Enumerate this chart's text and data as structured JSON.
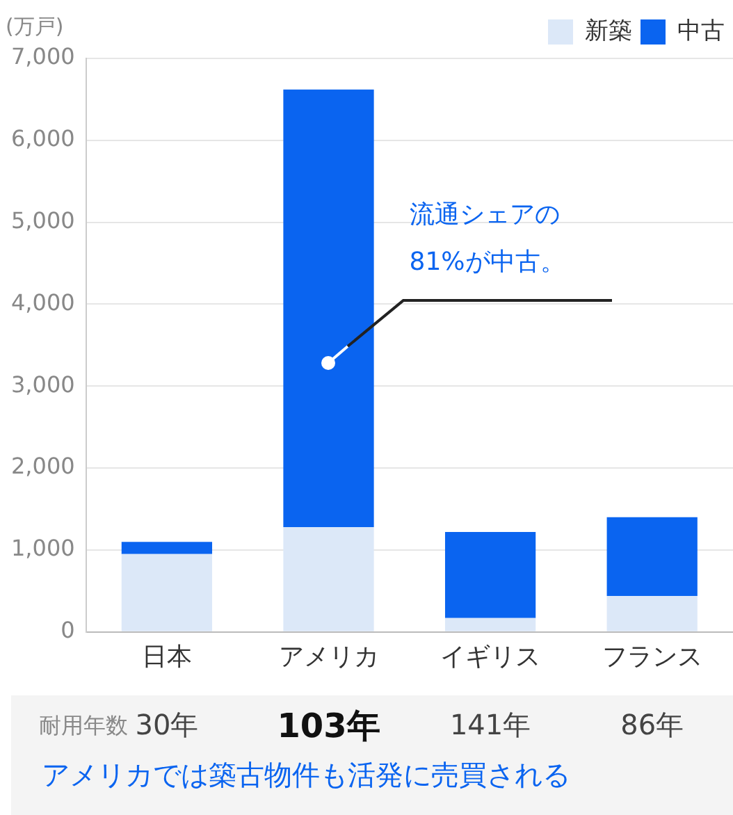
{
  "chart_data": {
    "type": "bar",
    "stacked": true,
    "ylabel": "(万戸)",
    "categories": [
      "日本",
      "アメリカ",
      "イギリス",
      "フランス"
    ],
    "series": [
      {
        "name": "新築",
        "color": "#dce8f8",
        "values": [
          950,
          1280,
          170,
          440
        ]
      },
      {
        "name": "中古",
        "color": "#0a64f0",
        "values": [
          150,
          5340,
          1050,
          960
        ]
      }
    ],
    "ylim": [
      0,
      7000
    ],
    "yticks": [
      {
        "value": 0,
        "label": "0"
      },
      {
        "value": 1000,
        "label": "1,000"
      },
      {
        "value": 2000,
        "label": "2,000"
      },
      {
        "value": 3000,
        "label": "3,000"
      },
      {
        "value": 4000,
        "label": "4,000"
      },
      {
        "value": 5000,
        "label": "5,000"
      },
      {
        "value": 6000,
        "label": "6,000"
      },
      {
        "value": 7000,
        "label": "7,000"
      }
    ],
    "grid": "y",
    "legend": "top right",
    "annotations": [
      "流通シェアの\n81%が中古。",
      "耐用年数",
      "30年",
      "103年",
      "141年",
      "86年",
      "アメリカでは築古物件も活発に売買される"
    ]
  }
}
